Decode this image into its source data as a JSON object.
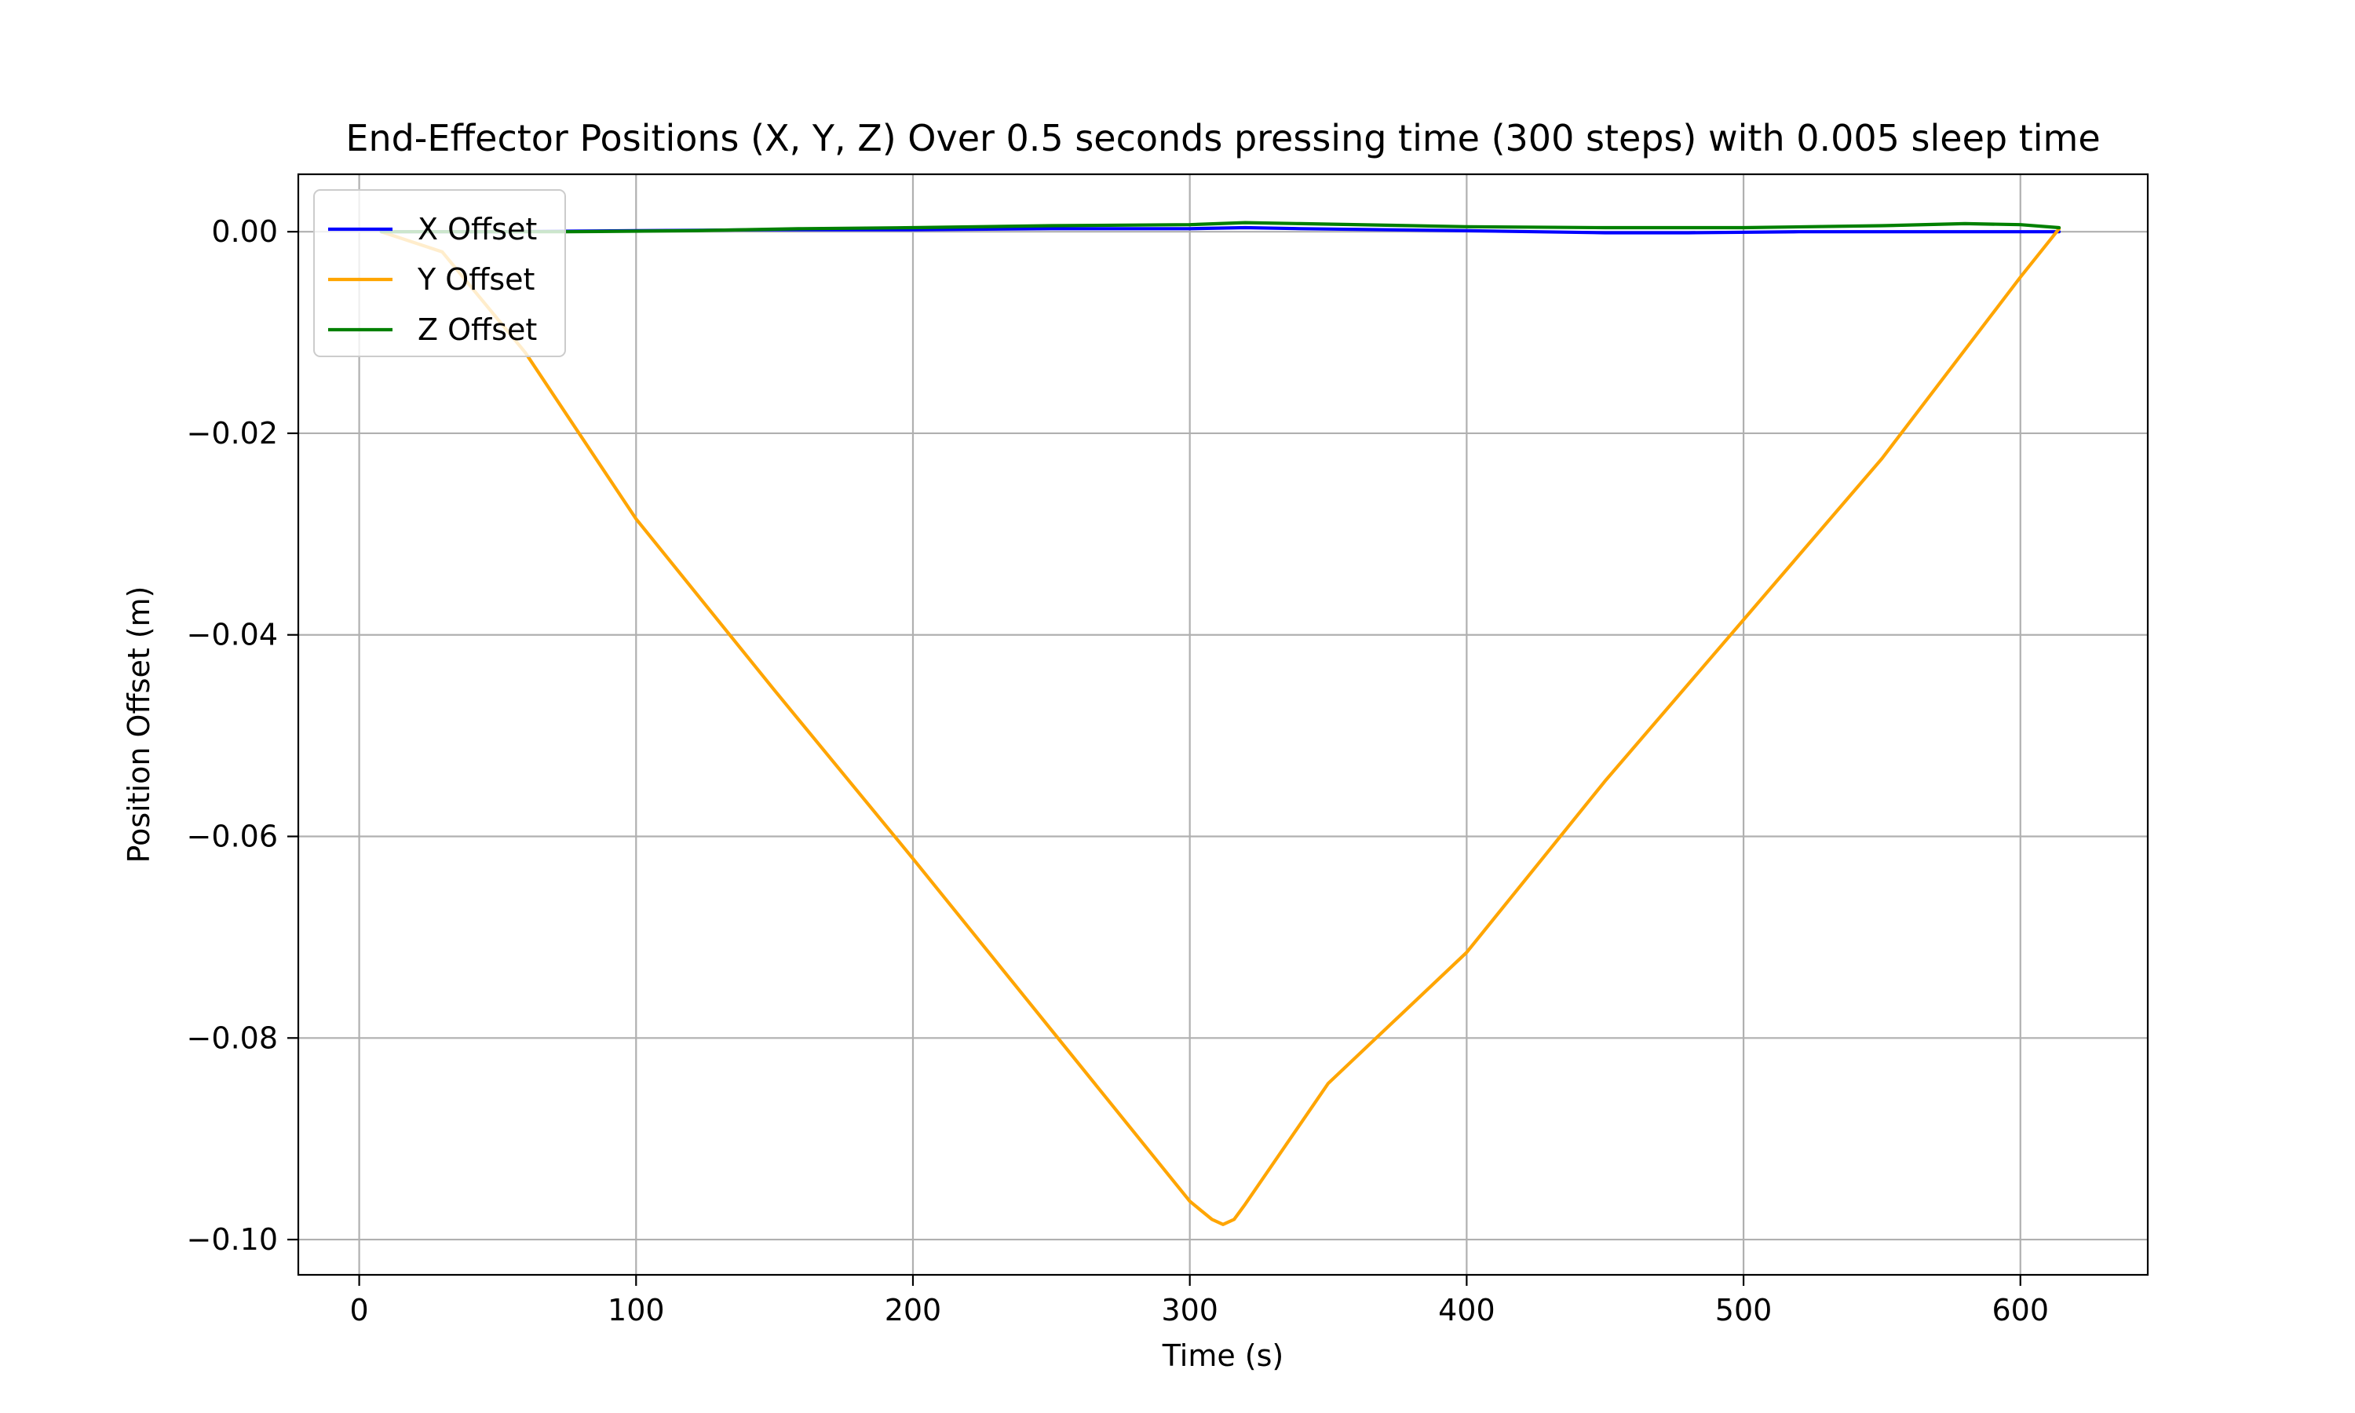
{
  "chart_data": {
    "type": "line",
    "title": "End-Effector Positions (X, Y, Z) Over 0.5 seconds pressing time (300 steps) with 0.005 sleep time",
    "xlabel": "Time (s)",
    "ylabel": "Position Offset (m)",
    "xlim": [
      -22,
      646
    ],
    "ylim": [
      -0.1035,
      0.0057
    ],
    "xticks": [
      0,
      100,
      200,
      300,
      400,
      500,
      600
    ],
    "xtick_labels": [
      "0",
      "100",
      "200",
      "300",
      "400",
      "500",
      "600"
    ],
    "yticks": [
      0.0,
      -0.02,
      -0.04,
      -0.06,
      -0.08,
      -0.1
    ],
    "ytick_labels": [
      "0.00",
      "−0.02",
      "−0.04",
      "−0.06",
      "−0.08",
      "−0.10"
    ],
    "grid": true,
    "legend_position": "upper-left",
    "series": [
      {
        "name": "X Offset",
        "color": "#0000ff",
        "x": [
          8,
          50,
          100,
          150,
          200,
          250,
          300,
          320,
          340,
          400,
          450,
          480,
          520,
          560,
          600,
          614
        ],
        "y": [
          0.0,
          0.0,
          0.0001,
          0.0002,
          0.0002,
          0.0003,
          0.0003,
          0.0004,
          0.0003,
          0.0001,
          -0.0001,
          -0.0001,
          0.0,
          0.0,
          0.0,
          0.0
        ]
      },
      {
        "name": "Y Offset",
        "color": "#ffa500",
        "x": [
          8,
          30,
          60,
          100,
          150,
          200,
          250,
          300,
          308,
          312,
          316,
          320,
          350,
          400,
          450,
          500,
          550,
          600,
          614
        ],
        "y": [
          0.0,
          -0.002,
          -0.012,
          -0.0285,
          -0.0455,
          -0.0622,
          -0.0792,
          -0.0962,
          -0.098,
          -0.0985,
          -0.098,
          -0.0965,
          -0.0845,
          -0.0715,
          -0.0545,
          -0.0385,
          -0.0225,
          -0.0045,
          0.0003
        ]
      },
      {
        "name": "Z Offset",
        "color": "#008000",
        "x": [
          8,
          75,
          120,
          160,
          200,
          250,
          300,
          320,
          340,
          400,
          450,
          500,
          550,
          580,
          600,
          614
        ],
        "y": [
          0.0,
          0.0,
          0.0001,
          0.0003,
          0.0004,
          0.0006,
          0.0007,
          0.0009,
          0.0008,
          0.0005,
          0.0004,
          0.0004,
          0.0006,
          0.0008,
          0.0007,
          0.0004
        ]
      }
    ]
  }
}
